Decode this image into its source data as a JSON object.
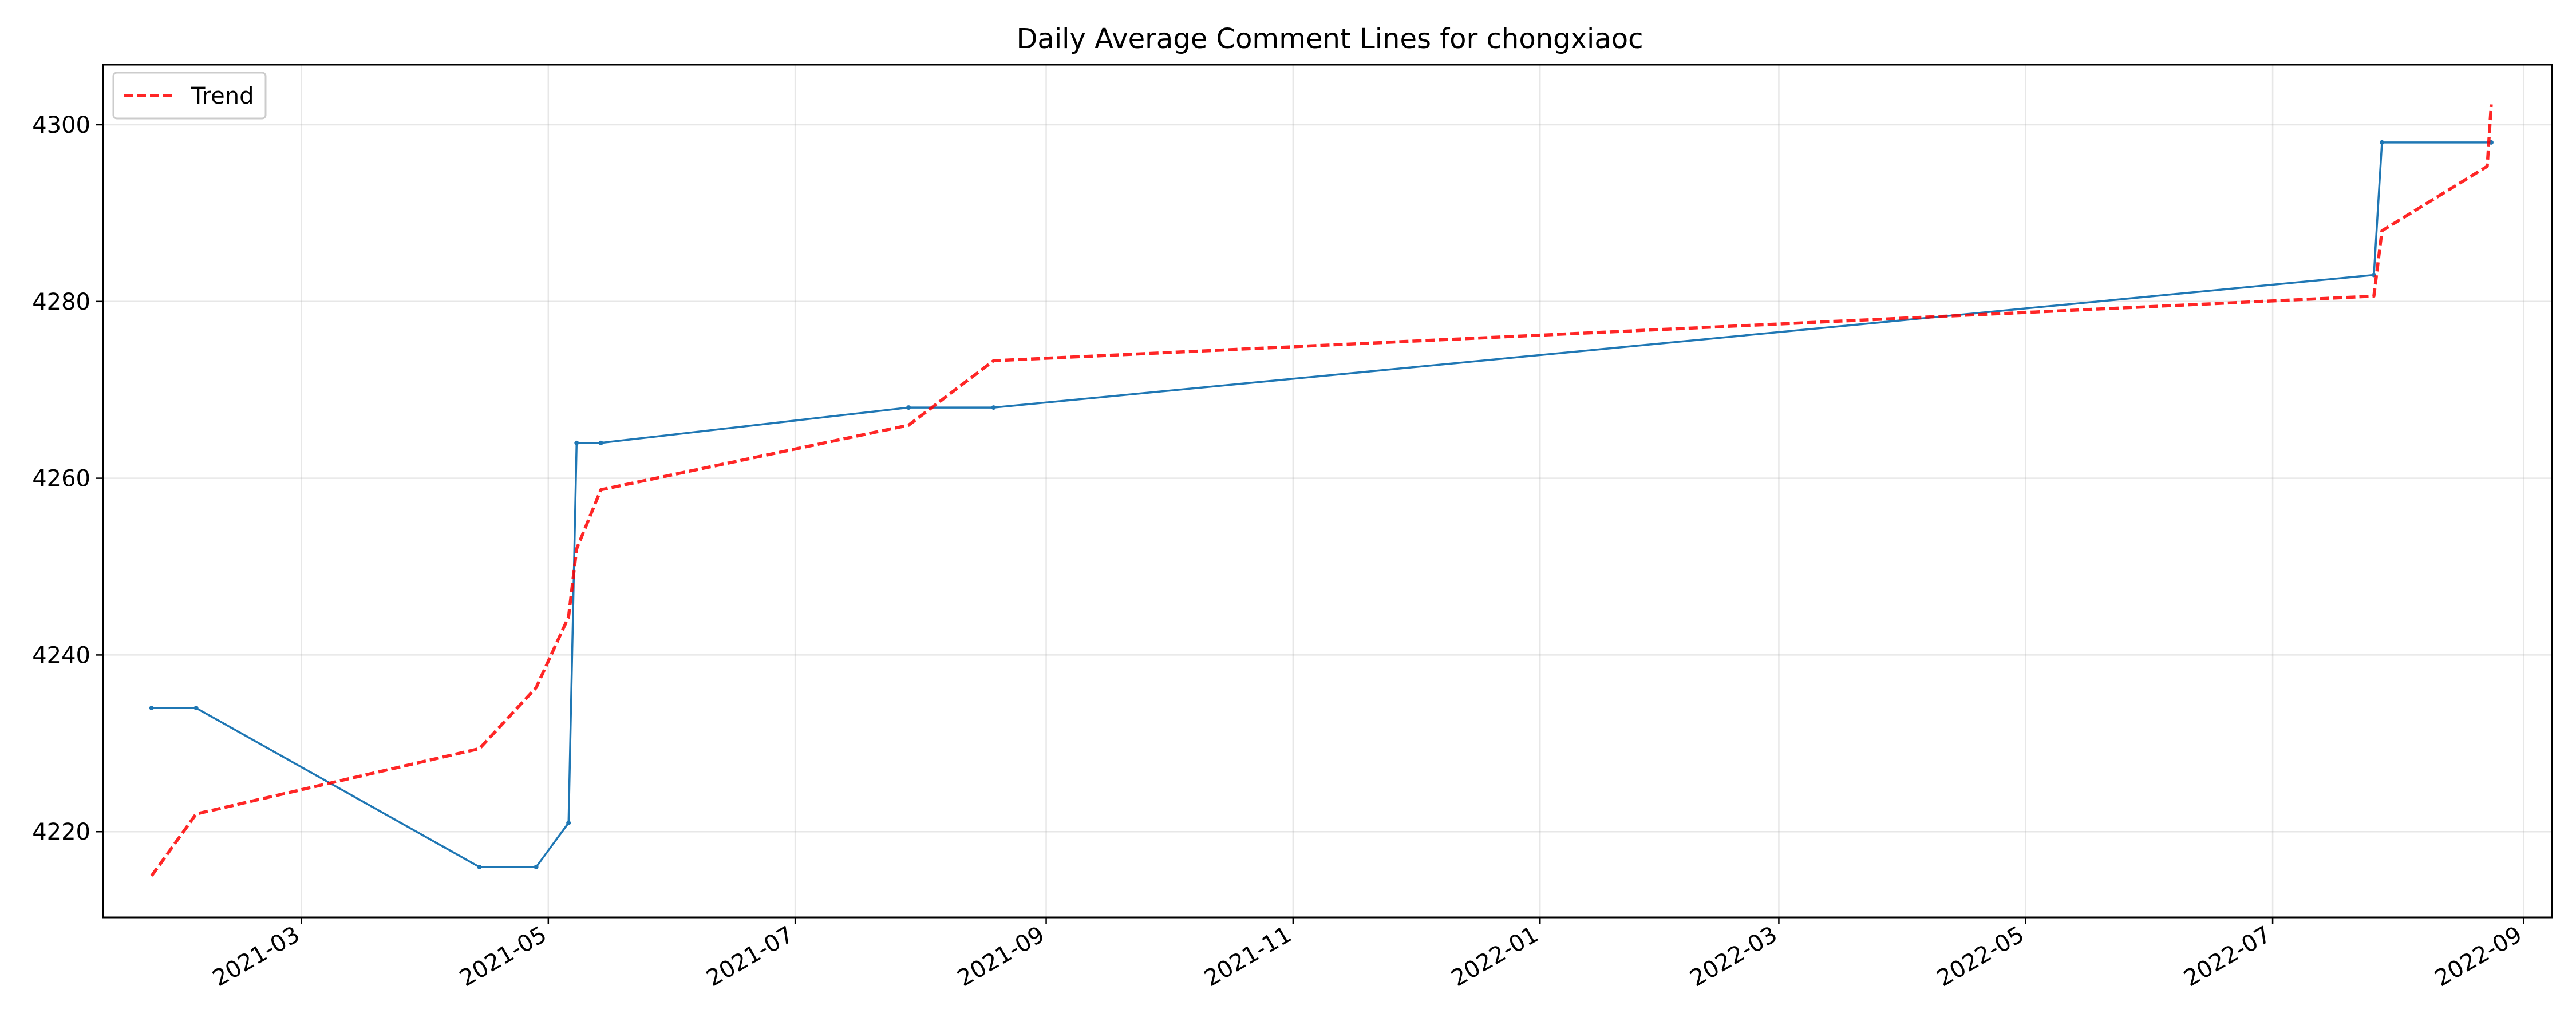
{
  "chart_data": {
    "type": "line",
    "title": "Daily Average Comment Lines for chongxiaoc",
    "xlabel": "",
    "ylabel": "",
    "x_axis_type": "date",
    "xlim": [
      "2021-01-11",
      "2022-09-08"
    ],
    "ylim": [
      4210.3,
      4306.8
    ],
    "x_ticks": [
      "2021-03",
      "2021-05",
      "2021-07",
      "2021-09",
      "2021-11",
      "2022-01",
      "2022-03",
      "2022-05",
      "2022-07",
      "2022-09"
    ],
    "y_ticks": [
      4220,
      4240,
      4260,
      4280,
      4300
    ],
    "grid": true,
    "legend": {
      "position": "top-left",
      "entries": [
        "Trend"
      ]
    },
    "series": [
      {
        "name": "",
        "color": "#1f77b4",
        "style": "solid",
        "markers": true,
        "points": [
          {
            "x": "2021-01-23",
            "y": 4234
          },
          {
            "x": "2021-02-03",
            "y": 4234
          },
          {
            "x": "2021-04-14",
            "y": 4216
          },
          {
            "x": "2021-04-28",
            "y": 4216
          },
          {
            "x": "2021-05-06",
            "y": 4221
          },
          {
            "x": "2021-05-08",
            "y": 4264
          },
          {
            "x": "2021-05-14",
            "y": 4264
          },
          {
            "x": "2021-07-29",
            "y": 4268
          },
          {
            "x": "2021-08-19",
            "y": 4268
          },
          {
            "x": "2022-07-26",
            "y": 4283
          },
          {
            "x": "2022-07-28",
            "y": 4298
          },
          {
            "x": "2022-08-24",
            "y": 4298
          }
        ]
      },
      {
        "name": "Trend",
        "color": "#ff0000",
        "style": "dashed",
        "markers": false,
        "points": [
          {
            "x": "2021-01-23",
            "y": 4215
          },
          {
            "x": "2021-02-03",
            "y": 4222
          },
          {
            "x": "2021-04-14",
            "y": 4229.4
          },
          {
            "x": "2021-04-28",
            "y": 4236.3
          },
          {
            "x": "2021-05-06",
            "y": 4244.3
          },
          {
            "x": "2021-05-08",
            "y": 4252
          },
          {
            "x": "2021-05-14",
            "y": 4258.7
          },
          {
            "x": "2021-07-29",
            "y": 4266
          },
          {
            "x": "2021-08-19",
            "y": 4273.3
          },
          {
            "x": "2022-07-26",
            "y": 4280.6
          },
          {
            "x": "2022-07-28",
            "y": 4288
          },
          {
            "x": "2022-08-23",
            "y": 4295.3
          },
          {
            "x": "2022-08-24",
            "y": 4302.3
          }
        ]
      }
    ]
  }
}
